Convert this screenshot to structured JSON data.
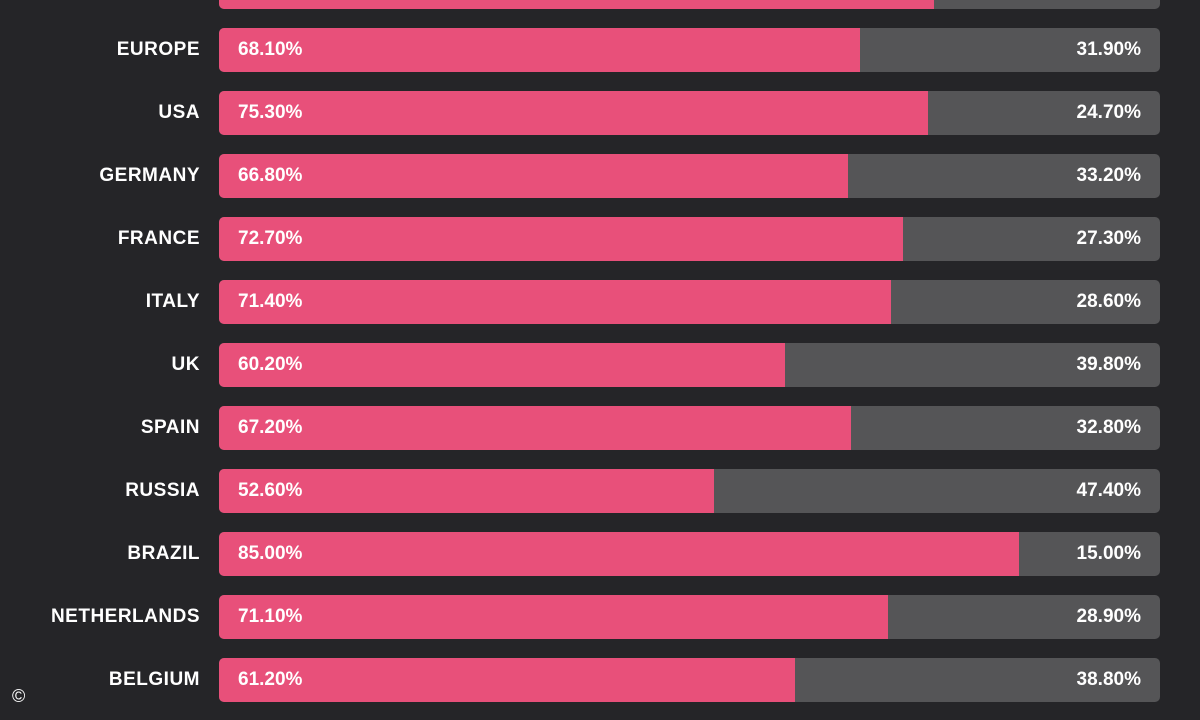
{
  "colors": {
    "background": "#252528",
    "primary_bar": "#e8507a",
    "remainder_bar": "#555557",
    "text": "#ffffff"
  },
  "copyright_symbol": "©",
  "chart_data": {
    "type": "bar",
    "orientation": "horizontal-stacked-100",
    "top_partial_row": {
      "value": 76.0,
      "remainder": 24.0
    },
    "categories": [
      "EUROPE",
      "USA",
      "GERMANY",
      "FRANCE",
      "ITALY",
      "UK",
      "SPAIN",
      "RUSSIA",
      "BRAZIL",
      "NETHERLANDS",
      "BELGIUM"
    ],
    "series": [
      {
        "values": [
          68.1,
          75.3,
          66.8,
          72.7,
          71.4,
          60.2,
          67.2,
          52.6,
          85.0,
          71.1,
          61.2
        ],
        "labels": [
          "68.10%",
          "75.30%",
          "66.80%",
          "72.70%",
          "71.40%",
          "60.20%",
          "67.20%",
          "52.60%",
          "85.00%",
          "71.10%",
          "61.20%"
        ]
      },
      {
        "values": [
          31.9,
          24.7,
          33.2,
          27.3,
          28.6,
          39.8,
          32.8,
          47.4,
          15.0,
          28.9,
          38.8
        ],
        "labels": [
          "31.90%",
          "24.70%",
          "33.20%",
          "27.30%",
          "28.60%",
          "39.80%",
          "32.80%",
          "47.40%",
          "15.00%",
          "28.90%",
          "38.80%"
        ]
      }
    ],
    "xlim": [
      0,
      100
    ],
    "grid": false,
    "title": "",
    "xlabel": "",
    "ylabel": ""
  }
}
